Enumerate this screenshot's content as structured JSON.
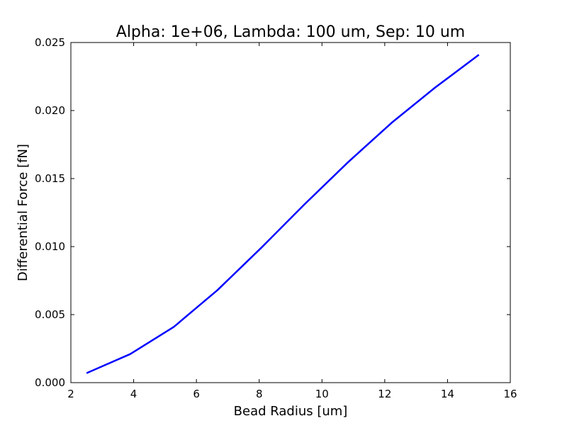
{
  "chart_data": {
    "type": "line",
    "title": "Alpha: 1e+06, Lambda: 100 um, Sep: 10 um",
    "xlabel": "Bead Radius [um]",
    "ylabel": "Differential Force [fN]",
    "xlim": [
      2,
      16
    ],
    "ylim": [
      0,
      0.025
    ],
    "xticks": [
      2,
      4,
      6,
      8,
      10,
      12,
      14,
      16
    ],
    "xtick_labels": [
      "2",
      "4",
      "6",
      "8",
      "10",
      "12",
      "14",
      "16"
    ],
    "yticks": [
      0,
      0.005,
      0.01,
      0.015,
      0.02,
      0.025
    ],
    "ytick_labels": [
      "0.000",
      "0.005",
      "0.010",
      "0.015",
      "0.020",
      "0.025"
    ],
    "grid": false,
    "series": [
      {
        "color": "#0000ff",
        "x": [
          2.5,
          3.89,
          5.28,
          6.67,
          8.06,
          9.44,
          10.83,
          12.22,
          13.61,
          15.0
        ],
        "y": [
          0.0007,
          0.0021,
          0.0041,
          0.0068,
          0.0099,
          0.0131,
          0.0162,
          0.0191,
          0.0217,
          0.0241
        ]
      }
    ]
  }
}
